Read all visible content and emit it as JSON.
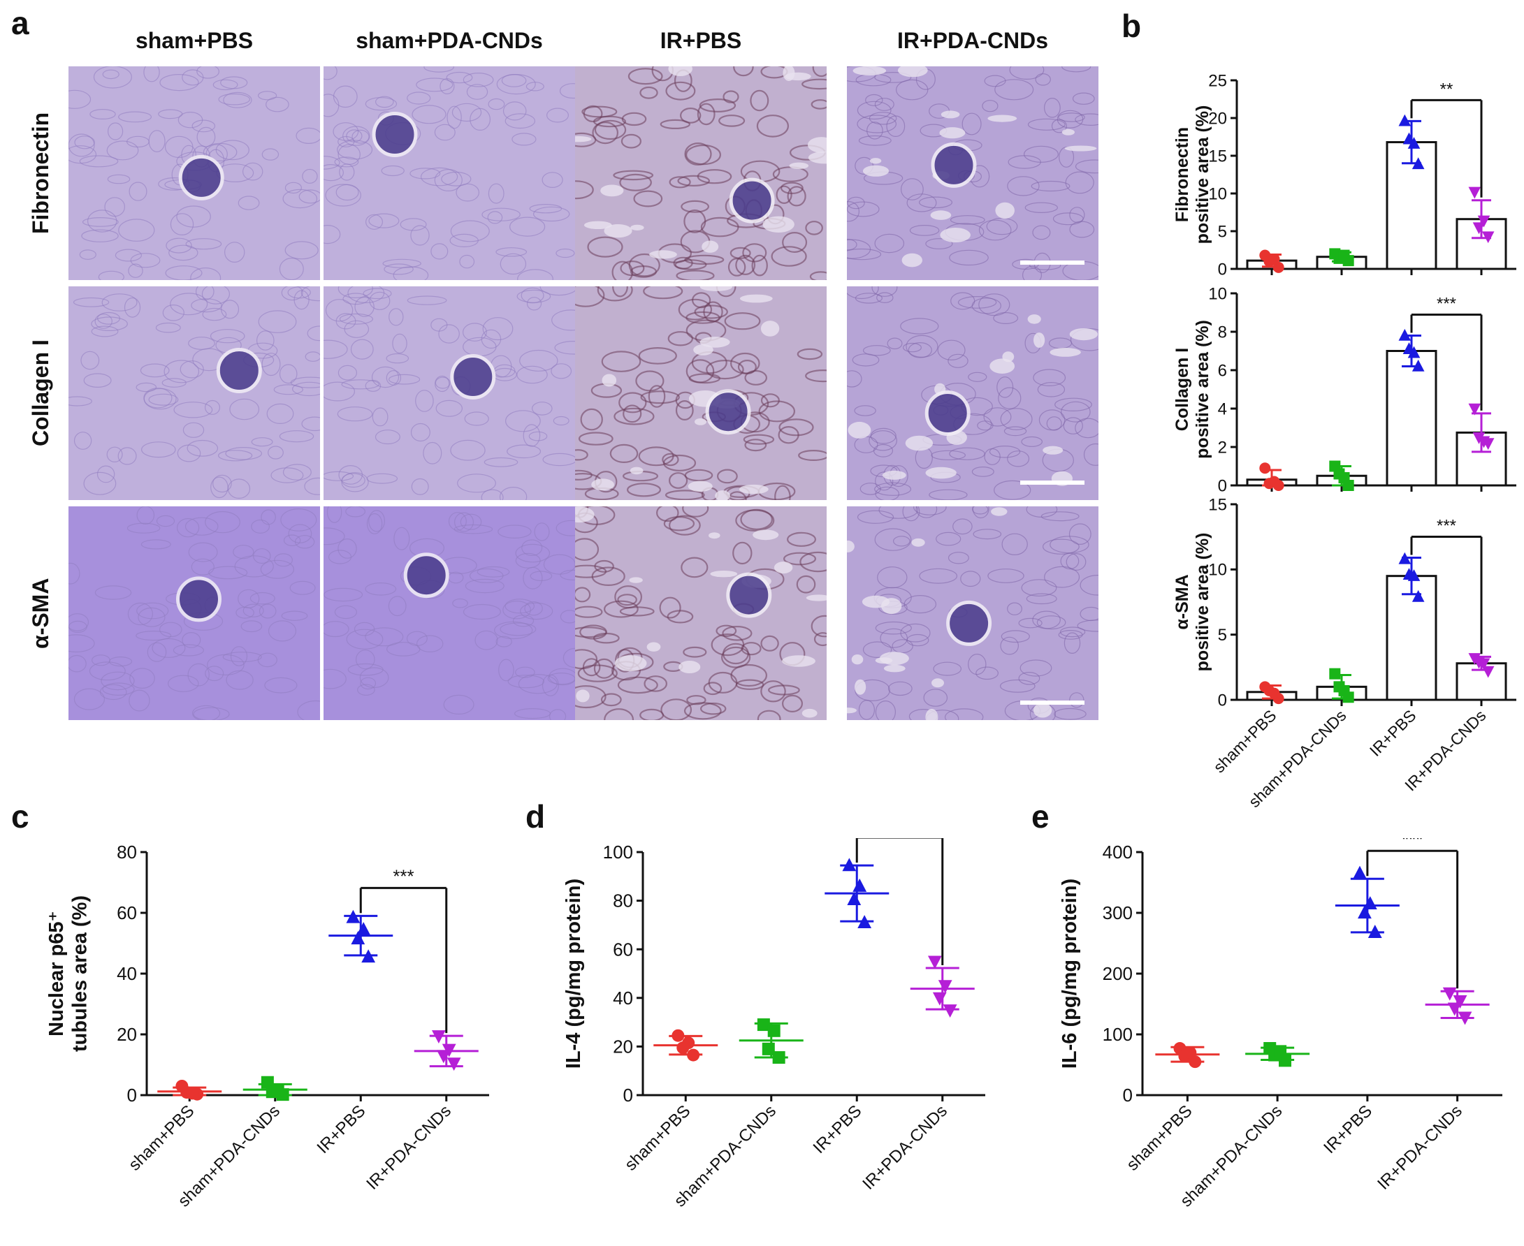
{
  "panels": {
    "a": "a",
    "b": "b",
    "c": "c",
    "d": "d",
    "e": "e"
  },
  "groups": [
    "sham+PBS",
    "sham+PDA-CNDs",
    "IR+PBS",
    "IR+PDA-CNDs"
  ],
  "group_colors": [
    "#e8332f",
    "#19b418",
    "#1a1ae0",
    "#b51fd6"
  ],
  "micrograph_rows": [
    "Fibronectin",
    "Collagen I",
    "α-SMA"
  ],
  "micrograph_groups": [
    "sham+PBS",
    "sham+PDA-CNDs",
    "IR+PBS",
    "IR+PDA-CNDs"
  ],
  "chart_data": [
    {
      "id": "b-fibronectin",
      "type": "bar",
      "ylabel_lines": [
        "Fibronectin",
        "positive area (%)"
      ],
      "categories": [
        "sham+PBS",
        "sham+PDA-CNDs",
        "IR+PBS",
        "IR+PDA-CNDs"
      ],
      "values": [
        1.1,
        1.6,
        16.8,
        6.6
      ],
      "errors": [
        0.8,
        0.6,
        2.8,
        2.5
      ],
      "points": [
        [
          1.8,
          0.2,
          1.0,
          1.3
        ],
        [
          2.0,
          1.1,
          1.4,
          1.8
        ],
        [
          19.6,
          13.9,
          17.2,
          16.6
        ],
        [
          10.2,
          4.3,
          5.5,
          6.4
        ]
      ],
      "ylim": [
        0,
        25
      ],
      "yticks": [
        0,
        5,
        10,
        15,
        20,
        25
      ],
      "significance": {
        "from": 2,
        "to": 3,
        "label": "**"
      }
    },
    {
      "id": "b-collagen",
      "type": "bar",
      "ylabel_lines": [
        "Collagen I",
        "positive area (%)"
      ],
      "categories": [
        "sham+PBS",
        "sham+PDA-CNDs",
        "IR+PBS",
        "IR+PDA-CNDs"
      ],
      "values": [
        0.3,
        0.5,
        7.0,
        2.75
      ],
      "errors": [
        0.5,
        0.5,
        0.8,
        1.0
      ],
      "points": [
        [
          0.9,
          0.0,
          0.1,
          0.2
        ],
        [
          1.0,
          0.0,
          0.6,
          0.4
        ],
        [
          7.8,
          6.2,
          7.1,
          6.9
        ],
        [
          4.0,
          2.2,
          2.5,
          2.3
        ]
      ],
      "ylim": [
        0,
        10
      ],
      "yticks": [
        0,
        2,
        4,
        6,
        8,
        10
      ],
      "significance": {
        "from": 2,
        "to": 3,
        "label": "***"
      }
    },
    {
      "id": "b-asma",
      "type": "bar",
      "ylabel_lines": [
        "α-SMA",
        "positive area (%)"
      ],
      "categories": [
        "sham+PBS",
        "sham+PDA-CNDs",
        "IR+PBS",
        "IR+PDA-CNDs"
      ],
      "values": [
        0.6,
        1.0,
        9.5,
        2.8
      ],
      "errors": [
        0.5,
        0.9,
        1.4,
        0.5
      ],
      "points": [
        [
          1.0,
          0.1,
          0.7,
          0.5
        ],
        [
          2.0,
          0.2,
          1.0,
          0.7
        ],
        [
          10.8,
          7.9,
          9.6,
          9.5
        ],
        [
          3.2,
          2.2,
          2.9,
          2.8
        ]
      ],
      "ylim": [
        0,
        15
      ],
      "yticks": [
        0,
        5,
        10,
        15
      ],
      "significance": {
        "from": 2,
        "to": 3,
        "label": "***"
      }
    },
    {
      "id": "c-p65",
      "type": "scatter",
      "ylabel_lines": [
        "Nuclear p65⁺",
        "tubules area (%)"
      ],
      "categories": [
        "sham+PBS",
        "sham+PDA-CNDs",
        "IR+PBS",
        "IR+PDA-CNDs"
      ],
      "values": [
        1.2,
        1.8,
        52.5,
        14.5
      ],
      "errors": [
        1.3,
        1.8,
        6.5,
        5.0
      ],
      "points": [
        [
          3.0,
          0.3,
          0.9,
          0.6
        ],
        [
          4.2,
          0.2,
          1.1,
          1.7
        ],
        [
          58.5,
          45.5,
          51.5,
          54.5
        ],
        [
          19.5,
          10.5,
          13.0,
          15.0
        ]
      ],
      "ylim": [
        0,
        80
      ],
      "yticks": [
        0,
        20,
        40,
        60,
        80
      ],
      "significance": {
        "from": 2,
        "to": 3,
        "label": "***"
      }
    },
    {
      "id": "d-il4",
      "type": "scatter",
      "ylabel_lines": [
        "IL-4 (pg/mg protein)"
      ],
      "categories": [
        "sham+PBS",
        "sham+PDA-CNDs",
        "IR+PBS",
        "IR+PDA-CNDs"
      ],
      "values": [
        20.5,
        22.5,
        83.0,
        43.8
      ],
      "errors": [
        3.8,
        7.0,
        11.5,
        8.5
      ],
      "points": [
        [
          24.5,
          16.5,
          19.5,
          21.5
        ],
        [
          29.0,
          15.5,
          19.0,
          26.5
        ],
        [
          94.5,
          71.0,
          80.5,
          86.0
        ],
        [
          55.0,
          35.0,
          40.0,
          45.0
        ]
      ],
      "ylim": [
        0,
        100
      ],
      "yticks": [
        0,
        20,
        40,
        60,
        80,
        100
      ],
      "significance": {
        "from": 2,
        "to": 3,
        "label": "**"
      }
    },
    {
      "id": "e-il6",
      "type": "scatter",
      "ylabel_lines": [
        "IL-6 (pg/mg protein)"
      ],
      "categories": [
        "sham+PBS",
        "sham+PDA-CNDs",
        "IR+PBS",
        "IR+PDA-CNDs"
      ],
      "values": [
        67,
        68,
        312,
        149
      ],
      "errors": [
        12,
        10,
        44,
        22
      ],
      "points": [
        [
          77,
          55,
          64,
          70
        ],
        [
          77,
          57,
          66,
          72
        ],
        [
          365,
          268,
          300,
          315
        ],
        [
          168,
          128,
          143,
          155
        ]
      ],
      "ylim": [
        0,
        400
      ],
      "yticks": [
        0,
        100,
        200,
        300,
        400
      ],
      "significance": {
        "from": 2,
        "to": 3,
        "label": "***"
      }
    }
  ]
}
